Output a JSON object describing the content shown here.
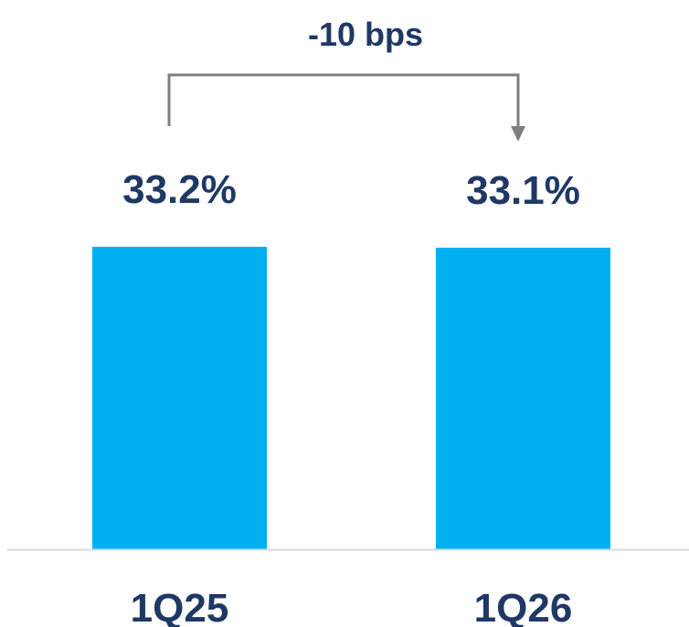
{
  "chart_data": {
    "type": "bar",
    "categories": [
      "1Q25",
      "1Q26"
    ],
    "values": [
      33.2,
      33.1
    ],
    "value_labels": [
      "33.2%",
      "33.1%"
    ],
    "annotation": "-10 bps",
    "title": "",
    "xlabel": "",
    "ylabel": "",
    "grid": false
  },
  "colors": {
    "bar": "#00b0f0",
    "text": "#1f3864",
    "connector": "#7f7f7f",
    "axis": "#d9d9d9"
  }
}
